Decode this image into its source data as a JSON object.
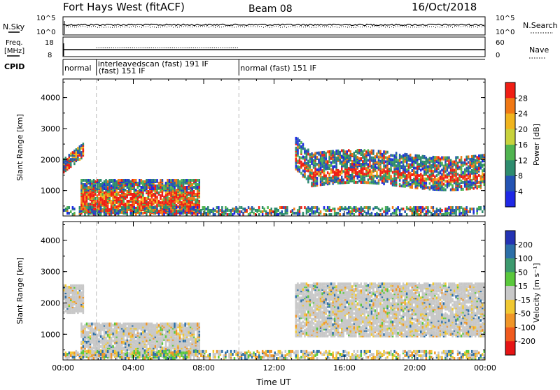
{
  "header": {
    "station": "Fort Hays West (fitACF)",
    "beam": "Beam 08",
    "date": "16/Oct/2018"
  },
  "top_panels": {
    "nsky_label": "N.Sky",
    "nsky_ticks": [
      "10^5",
      "10^0"
    ],
    "nsearch_label": "N.Search",
    "nsearch_ticks": [
      "10^5",
      "10^0"
    ],
    "freq_label_line1": "Freq.",
    "freq_label_line2": "[MHz]",
    "freq_ticks": [
      "18",
      "8"
    ],
    "nave_label": "Nave",
    "nave_ticks": [
      "60",
      "0"
    ],
    "cpid_label": "CPID",
    "cpid_segments": [
      {
        "start": 0.0,
        "end": 1.9,
        "text": "normal",
        "text2": ""
      },
      {
        "start": 1.9,
        "end": 10.0,
        "text": "interleavedscan (fast) 191 IF",
        "text2": "(fast) 151 IF"
      },
      {
        "start": 10.0,
        "end": 24.0,
        "text": "normal (fast) 151 IF",
        "text2": ""
      }
    ]
  },
  "chart_data": [
    {
      "type": "heatmap",
      "name": "power",
      "ylabel": "Slant Range [km]",
      "xlim": [
        "00:00",
        "24:00"
      ],
      "ylim": [
        180,
        4600
      ],
      "yticks": [
        "1000",
        "2000",
        "3000",
        "4000"
      ],
      "colorbar": {
        "label": "Power [dB]",
        "ticks": [
          "4",
          "8",
          "12",
          "16",
          "20",
          "24",
          "28"
        ],
        "colors": [
          "#1f28e6",
          "#2454b4",
          "#2e8c6e",
          "#50b450",
          "#c8d23c",
          "#f0b41e",
          "#f07814",
          "#f01e14"
        ]
      },
      "regions": [
        {
          "t0": 0.0,
          "t1": 1.1,
          "r0": 1650,
          "r1": 2550,
          "level": "mixed-strong"
        },
        {
          "t0": 1.0,
          "t1": 7.7,
          "r0": 250,
          "r1": 1300,
          "level": "strong"
        },
        {
          "t0": 0.0,
          "t1": 24.0,
          "r0": 180,
          "r1": 420,
          "level": "weak"
        },
        {
          "t0": 13.2,
          "t1": 24.0,
          "r0": 900,
          "r1": 2600,
          "level": "strong-band"
        }
      ]
    },
    {
      "type": "heatmap",
      "name": "velocity",
      "ylabel": "Slant Range [km]",
      "xlabel": "Time UT",
      "xlim": [
        "00:00",
        "24:00"
      ],
      "ylim": [
        180,
        4600
      ],
      "yticks": [
        "1000",
        "2000",
        "3000",
        "4000"
      ],
      "xticks": [
        "00:00",
        "04:00",
        "08:00",
        "12:00",
        "16:00",
        "20:00",
        "00:00"
      ],
      "colorbar": {
        "label": "Velocity [m s⁻¹]",
        "ticks": [
          "200",
          "100",
          "50",
          "15",
          "-15",
          "-50",
          "-100",
          "-200"
        ],
        "colors": [
          "#2433b4",
          "#2c6fa8",
          "#3c9a6e",
          "#5ac83c",
          "#c8c8c8",
          "#f0c832",
          "#f09628",
          "#f05a1e",
          "#e61414"
        ]
      },
      "regions": [
        {
          "t0": 0.0,
          "t1": 1.1,
          "r0": 1650,
          "r1": 2550,
          "level": "ground"
        },
        {
          "t0": 1.0,
          "t1": 7.7,
          "r0": 250,
          "r1": 1300,
          "level": "ground"
        },
        {
          "t0": 0.0,
          "t1": 24.0,
          "r0": 180,
          "r1": 420,
          "level": "ground-mixed"
        },
        {
          "t0": 13.2,
          "t1": 24.0,
          "r0": 900,
          "r1": 2600,
          "level": "ground"
        }
      ]
    }
  ]
}
